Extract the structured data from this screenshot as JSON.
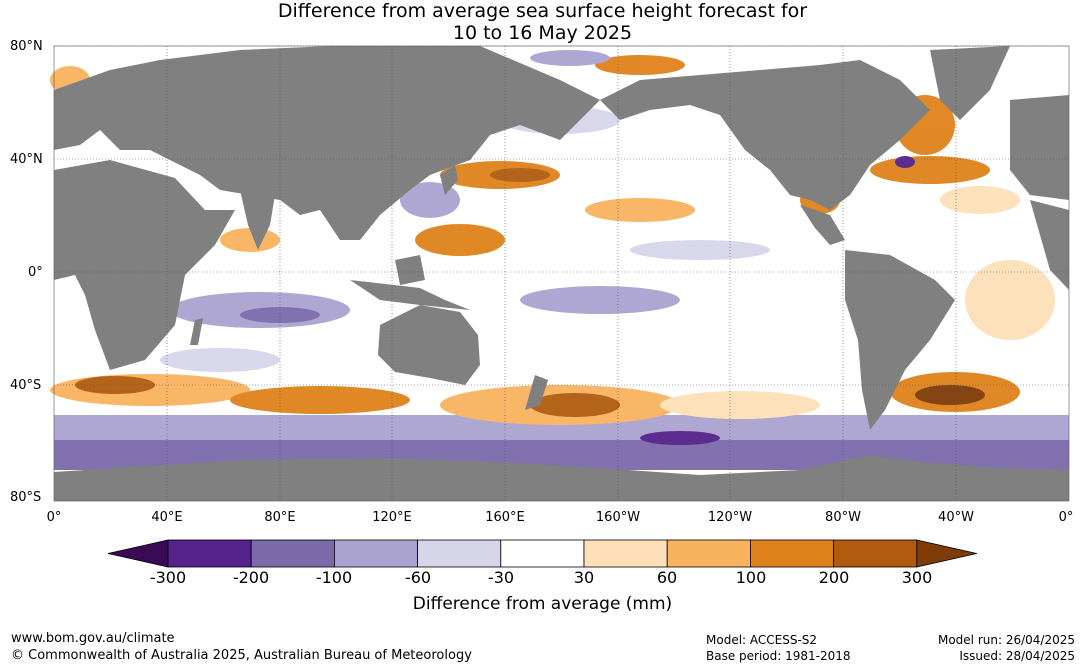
{
  "title_line1": "Difference from average sea surface height forecast for",
  "title_line2": "10 to 16 May 2025",
  "lat_labels": [
    "80°N",
    "40°N",
    "0°",
    "40°S",
    "80°S"
  ],
  "lon_labels": [
    "0°",
    "40°E",
    "80°E",
    "120°E",
    "160°E",
    "160°W",
    "120°W",
    "80°W",
    "40°W",
    "0°"
  ],
  "colorbar": {
    "ticks": [
      "-300",
      "-200",
      "-100",
      "-60",
      "-30",
      "30",
      "60",
      "100",
      "200",
      "300"
    ],
    "colors": [
      "#3b0a55",
      "#54228a",
      "#7b6aaa",
      "#aaa3cf",
      "#d6d5ea",
      "#ffffff",
      "#fde0b7",
      "#f9b35e",
      "#e0821b",
      "#b15b0f",
      "#7f3b08"
    ],
    "label": "Difference from average (mm)"
  },
  "colors": {
    "land": "#808080",
    "grid": "#555555"
  },
  "footer": {
    "url": "www.bom.gov.au/climate",
    "copyright": "© Commonwealth of Australia 2025, Australian Bureau of Meteorology",
    "model": "Model: ACCESS-S2",
    "base_period": "Base period: 1981-2018",
    "model_run": "Model run: 26/04/2025",
    "issued": "Issued: 28/04/2025"
  }
}
